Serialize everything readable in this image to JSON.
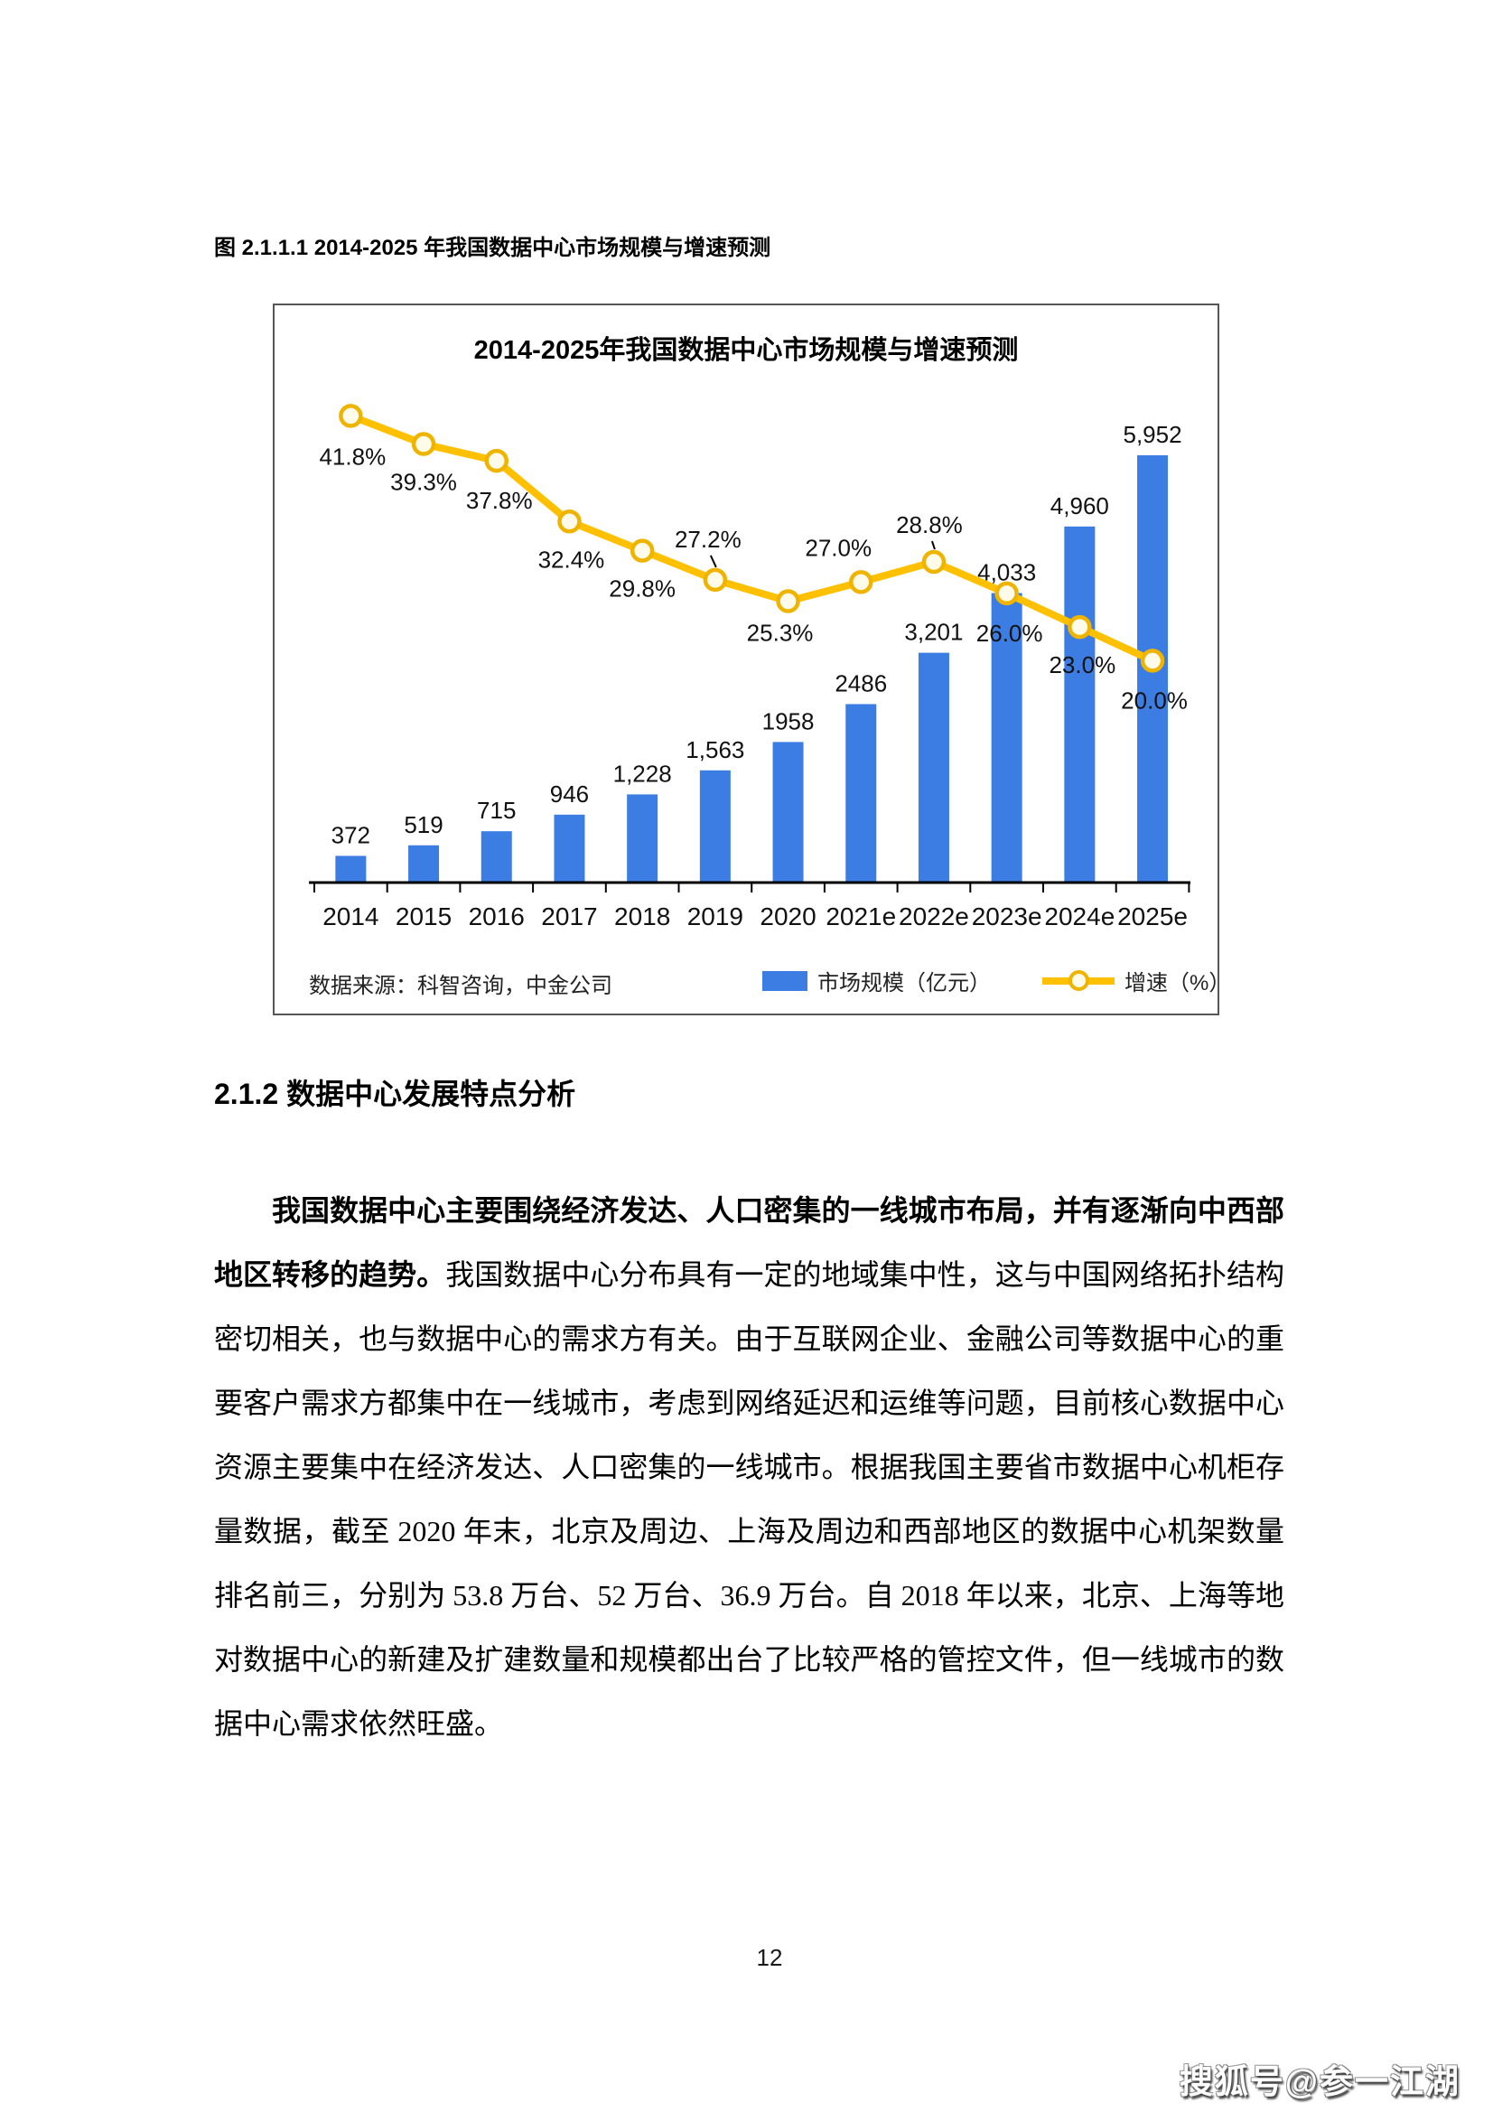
{
  "page": {
    "figure_caption": "图 2.1.1.1 2014-2025 年我国数据中心市场规模与增速预测",
    "section_heading": "2.1.2 数据中心发展特点分析",
    "page_number": "12",
    "watermark": "搜狐号@参一江湖"
  },
  "paragraph": {
    "bold_lead": "我国数据中心主要围绕经济发达、人口密集的一线城市布局，并有逐渐向中西部地区转移的趋势。",
    "body": "我国数据中心分布具有一定的地域集中性，这与中国网络拓扑结构密切相关，也与数据中心的需求方有关。由于互联网企业、金融公司等数据中心的重要客户需求方都集中在一线城市，考虑到网络延迟和运维等问题，目前核心数据中心资源主要集中在经济发达、人口密集的一线城市。根据我国主要省市数据中心机柜存量数据，截至 2020 年末，北京及周边、上海及周边和西部地区的数据中心机架数量排名前三，分别为 53.8 万台、52 万台、36.9 万台。自 2018 年以来，北京、上海等地对数据中心的新建及扩建数量和规模都出台了比较严格的管控文件，但一线城市的数据中心需求依然旺盛。"
  },
  "chart_data": {
    "type": "combo-bar-line",
    "title": "2014-2025年我国数据中心市场规模与增速预测",
    "categories": [
      "2014",
      "2015",
      "2016",
      "2017",
      "2018",
      "2019",
      "2020",
      "2021e",
      "2022e",
      "2023e",
      "2024e",
      "2025e"
    ],
    "series": [
      {
        "name": "市场规模（亿元）",
        "type": "bar",
        "color": "#3C7DE3",
        "values": [
          372,
          519,
          715,
          946,
          1228,
          1563,
          1958,
          2486,
          3201,
          4033,
          4960,
          5952
        ],
        "labels": [
          "372",
          "519",
          "715",
          "946",
          "1,228",
          "1,563",
          "1958",
          "2486",
          "3,201",
          "4,033",
          "4,960",
          "5,952"
        ]
      },
      {
        "name": "增速（%）",
        "type": "line",
        "color": "#FFC000",
        "values": [
          41.8,
          39.3,
          37.8,
          32.4,
          29.8,
          27.2,
          25.3,
          27.0,
          28.8,
          26.0,
          23.0,
          20.0
        ],
        "labels": [
          "41.8%",
          "39.3%",
          "37.8%",
          "32.4%",
          "29.8%",
          "27.2%",
          "25.3%",
          "27.0%",
          "28.8%",
          "26.0%",
          "23.0%",
          "20.0%"
        ]
      }
    ],
    "source": "数据来源：科智咨询，中金公司",
    "legend_position": "bottom-right",
    "gridlines": false,
    "y_axis_visible": false,
    "colors": {
      "bar": "#3C7DE3",
      "line": "#FFC000",
      "marker_fill": "#FFFBEA",
      "marker_stroke": "#EFB400",
      "axis": "#000000"
    }
  }
}
